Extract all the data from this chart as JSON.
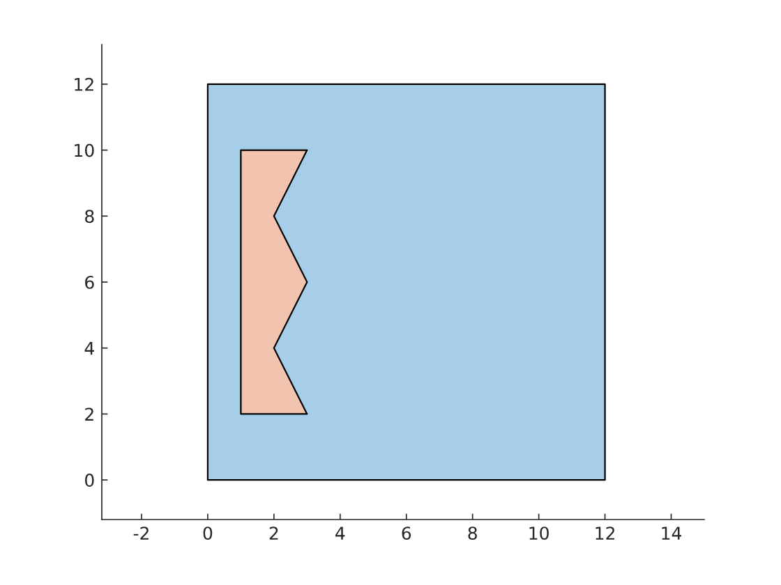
{
  "chart_data": {
    "type": "area",
    "series": [
      {
        "type": "area",
        "color": "#a6cee8",
        "x": [
          0,
          12,
          12,
          0
        ],
        "values": [
          0,
          0,
          12,
          12
        ]
      },
      {
        "type": "area",
        "color": "#f2c4b0",
        "x": [
          1,
          3,
          2,
          3,
          2,
          3,
          1
        ],
        "values": [
          2,
          2,
          4,
          6,
          8,
          10,
          10
        ]
      }
    ],
    "xlim": [
      -3.2,
      15
    ],
    "ylim": [
      -1.2,
      13.2
    ],
    "xticks": [
      -2,
      0,
      2,
      4,
      6,
      8,
      10,
      12,
      14
    ],
    "yticks": [
      0,
      2,
      4,
      6,
      8,
      10,
      12
    ],
    "grid": false,
    "legend": false
  }
}
